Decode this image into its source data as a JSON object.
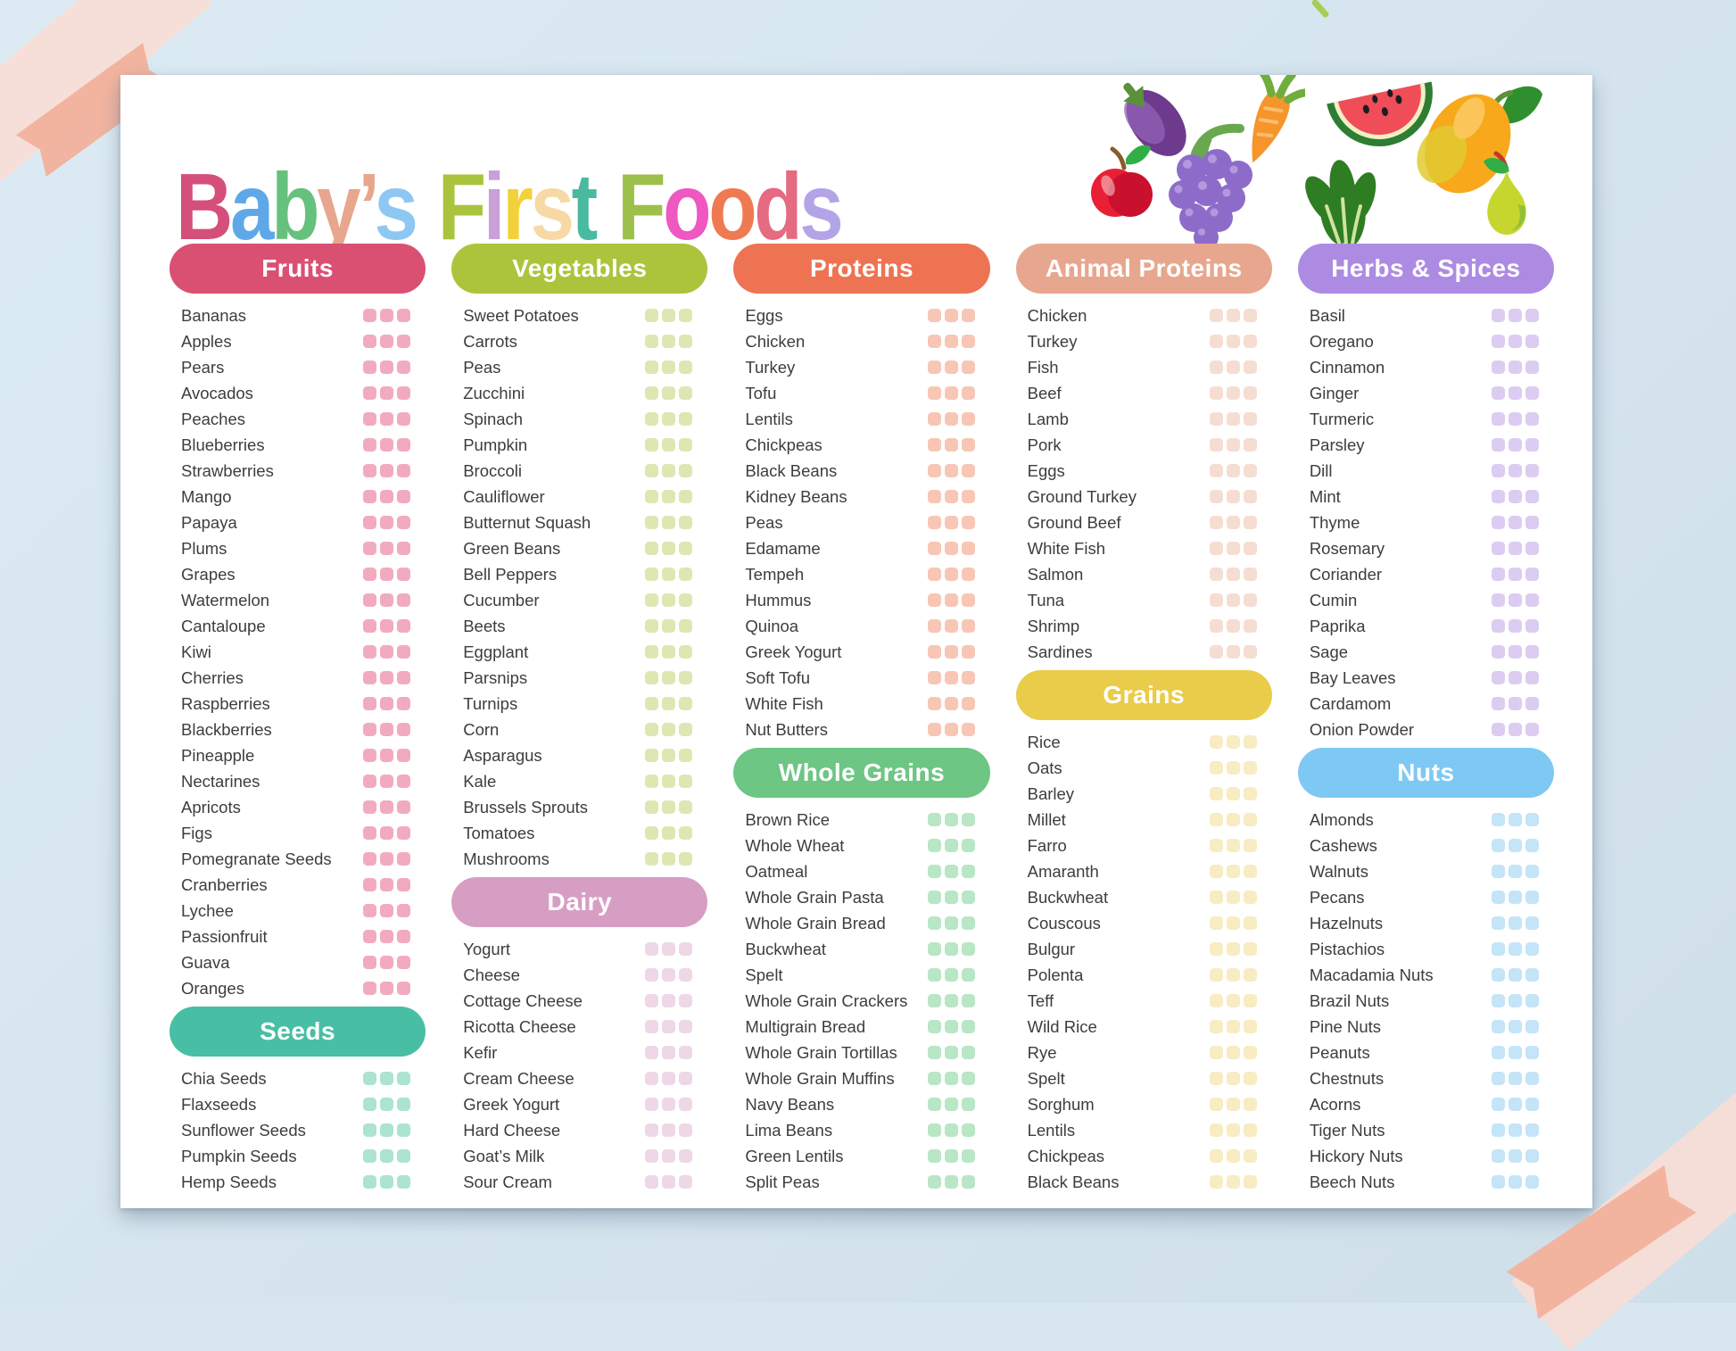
{
  "title": {
    "text": "Baby's First Foods",
    "letters": [
      {
        "c": "B",
        "color": "#d4507a"
      },
      {
        "c": "a",
        "color": "#5fa8e8"
      },
      {
        "c": "b",
        "color": "#66c17d"
      },
      {
        "c": "y",
        "color": "#e7a68d"
      },
      {
        "c": "’",
        "color": "#e7a68d"
      },
      {
        "c": "s",
        "color": "#8fc7f3"
      },
      {
        "c": " "
      },
      {
        "c": "F",
        "color": "#a9c33c"
      },
      {
        "c": "i",
        "color": "#c9a0d8"
      },
      {
        "c": "r",
        "color": "#f3d139"
      },
      {
        "c": "s",
        "color": "#f6d9a4"
      },
      {
        "c": "t",
        "color": "#49b9a0"
      },
      {
        "c": " "
      },
      {
        "c": "F",
        "color": "#9cc04a"
      },
      {
        "c": "o",
        "color": "#ee58c0"
      },
      {
        "c": "o",
        "color": "#ef7a52"
      },
      {
        "c": "d",
        "color": "#e56a82"
      },
      {
        "c": "s",
        "color": "#b2a4e6"
      }
    ]
  },
  "checklist": {
    "checkboxes_per_item": 3,
    "item_text_color": "#3d3d3d",
    "columns": [
      {
        "sections": [
          {
            "label": "Fruits",
            "header_color": "#da5073",
            "checkbox_color": "#f2abbe",
            "items": [
              "Bananas",
              "Apples",
              "Pears",
              "Avocados",
              "Peaches",
              "Blueberries",
              "Strawberries",
              "Mango",
              "Papaya",
              "Plums",
              "Grapes",
              "Watermelon",
              "Cantaloupe",
              "Kiwi",
              "Cherries",
              "Raspberries",
              "Blackberries",
              "Pineapple",
              "Nectarines",
              "Apricots",
              "Figs",
              "Pomegranate Seeds",
              "Cranberries",
              "Lychee",
              "Passionfruit",
              "Guava",
              "Oranges"
            ]
          },
          {
            "label": "Seeds",
            "header_color": "#48bfa4",
            "checkbox_color": "#ace3d3",
            "items": [
              "Chia Seeds",
              "Flaxseeds",
              "Sunflower Seeds",
              "Pumpkin Seeds",
              "Hemp Seeds"
            ]
          }
        ]
      },
      {
        "sections": [
          {
            "label": "Vegetables",
            "header_color": "#abc43c",
            "checkbox_color": "#e0e6b2",
            "items": [
              "Sweet Potatoes",
              "Carrots",
              "Peas",
              "Zucchini",
              "Spinach",
              "Pumpkin",
              "Broccoli",
              "Cauliflower",
              "Butternut Squash",
              "Green Beans",
              "Bell Peppers",
              "Cucumber",
              "Beets",
              "Eggplant",
              "Parsnips",
              "Turnips",
              "Corn",
              "Asparagus",
              "Kale",
              "Brussels Sprouts",
              "Tomatoes",
              "Mushrooms"
            ]
          },
          {
            "label": "Dairy",
            "header_color": "#d79ec4",
            "checkbox_color": "#eed7e6",
            "items": [
              "Yogurt",
              "Cheese",
              "Cottage Cheese",
              "Ricotta Cheese",
              "Kefir",
              "Cream Cheese",
              "Greek Yogurt",
              "Hard Cheese",
              "Goat’s Milk",
              "Sour Cream"
            ]
          }
        ]
      },
      {
        "sections": [
          {
            "label": "Proteins",
            "header_color": "#ee7353",
            "checkbox_color": "#f8c6b5",
            "items": [
              "Eggs",
              "Chicken",
              "Turkey",
              "Tofu",
              "Lentils",
              "Chickpeas",
              "Black Beans",
              "Kidney Beans",
              "Peas",
              "Edamame",
              "Tempeh",
              "Hummus",
              "Quinoa",
              "Greek Yogurt",
              "Soft Tofu",
              "White Fish",
              "Nut Butters"
            ]
          },
          {
            "label": "Whole Grains",
            "header_color": "#6dc683",
            "checkbox_color": "#b9e6c5",
            "items": [
              "Brown Rice",
              "Whole Wheat",
              "Oatmeal",
              "Whole Grain Pasta",
              "Whole Grain Bread",
              "Buckwheat",
              "Spelt",
              "Whole Grain Crackers",
              "Multigrain Bread",
              "Whole Grain Tortillas",
              "Whole Grain Muffins",
              "Navy Beans",
              "Lima Beans",
              "Green Lentils",
              "Split Peas"
            ]
          }
        ]
      },
      {
        "sections": [
          {
            "label": "Animal Proteins",
            "header_color": "#e7a78e",
            "checkbox_color": "#f6ddd2",
            "items": [
              "Chicken",
              "Turkey",
              "Fish",
              "Beef",
              "Lamb",
              "Pork",
              "Eggs",
              "Ground Turkey",
              "Ground Beef",
              "White Fish",
              "Salmon",
              "Tuna",
              "Shrimp",
              "Sardines"
            ]
          },
          {
            "label": "Grains",
            "header_color": "#e9cc49",
            "checkbox_color": "#f7ecc2",
            "items": [
              "Rice",
              "Oats",
              "Barley",
              "Millet",
              "Farro",
              "Amaranth",
              "Buckwheat",
              "Couscous",
              "Bulgur",
              "Polenta",
              "Teff",
              "Wild Rice",
              "Rye",
              "Spelt",
              "Sorghum",
              "Lentils",
              "Chickpeas",
              "Black Beans"
            ]
          }
        ]
      },
      {
        "sections": [
          {
            "label": "Herbs & Spices",
            "header_color": "#ad8be2",
            "checkbox_color": "#dcccf2",
            "items": [
              "Basil",
              "Oregano",
              "Cinnamon",
              "Ginger",
              "Turmeric",
              "Parsley",
              "Dill",
              "Mint",
              "Thyme",
              "Rosemary",
              "Coriander",
              "Cumin",
              "Paprika",
              "Sage",
              "Bay Leaves",
              "Cardamom",
              "Onion Powder"
            ]
          },
          {
            "label": "Nuts",
            "header_color": "#7ec9f4",
            "checkbox_color": "#c4e4f8",
            "items": [
              "Almonds",
              "Cashews",
              "Walnuts",
              "Pecans",
              "Hazelnuts",
              "Pistachios",
              "Macadamia Nuts",
              "Brazil Nuts",
              "Pine Nuts",
              "Peanuts",
              "Chestnuts",
              "Acorns",
              "Tiger Nuts",
              "Hickory Nuts",
              "Beech Nuts"
            ]
          }
        ]
      }
    ]
  },
  "decor": {
    "background_color": "#d8e6ef",
    "poster_color": "#ffffff",
    "tape_color_light": "#f8ddd6",
    "tape_color_salmon": "#f2b19c",
    "fruit_icons": [
      "eggplant-icon",
      "carrot-icon",
      "watermelon-icon",
      "mango-icon",
      "apple-icon",
      "grapes-icon",
      "spinach-icon",
      "pear-icon"
    ]
  }
}
